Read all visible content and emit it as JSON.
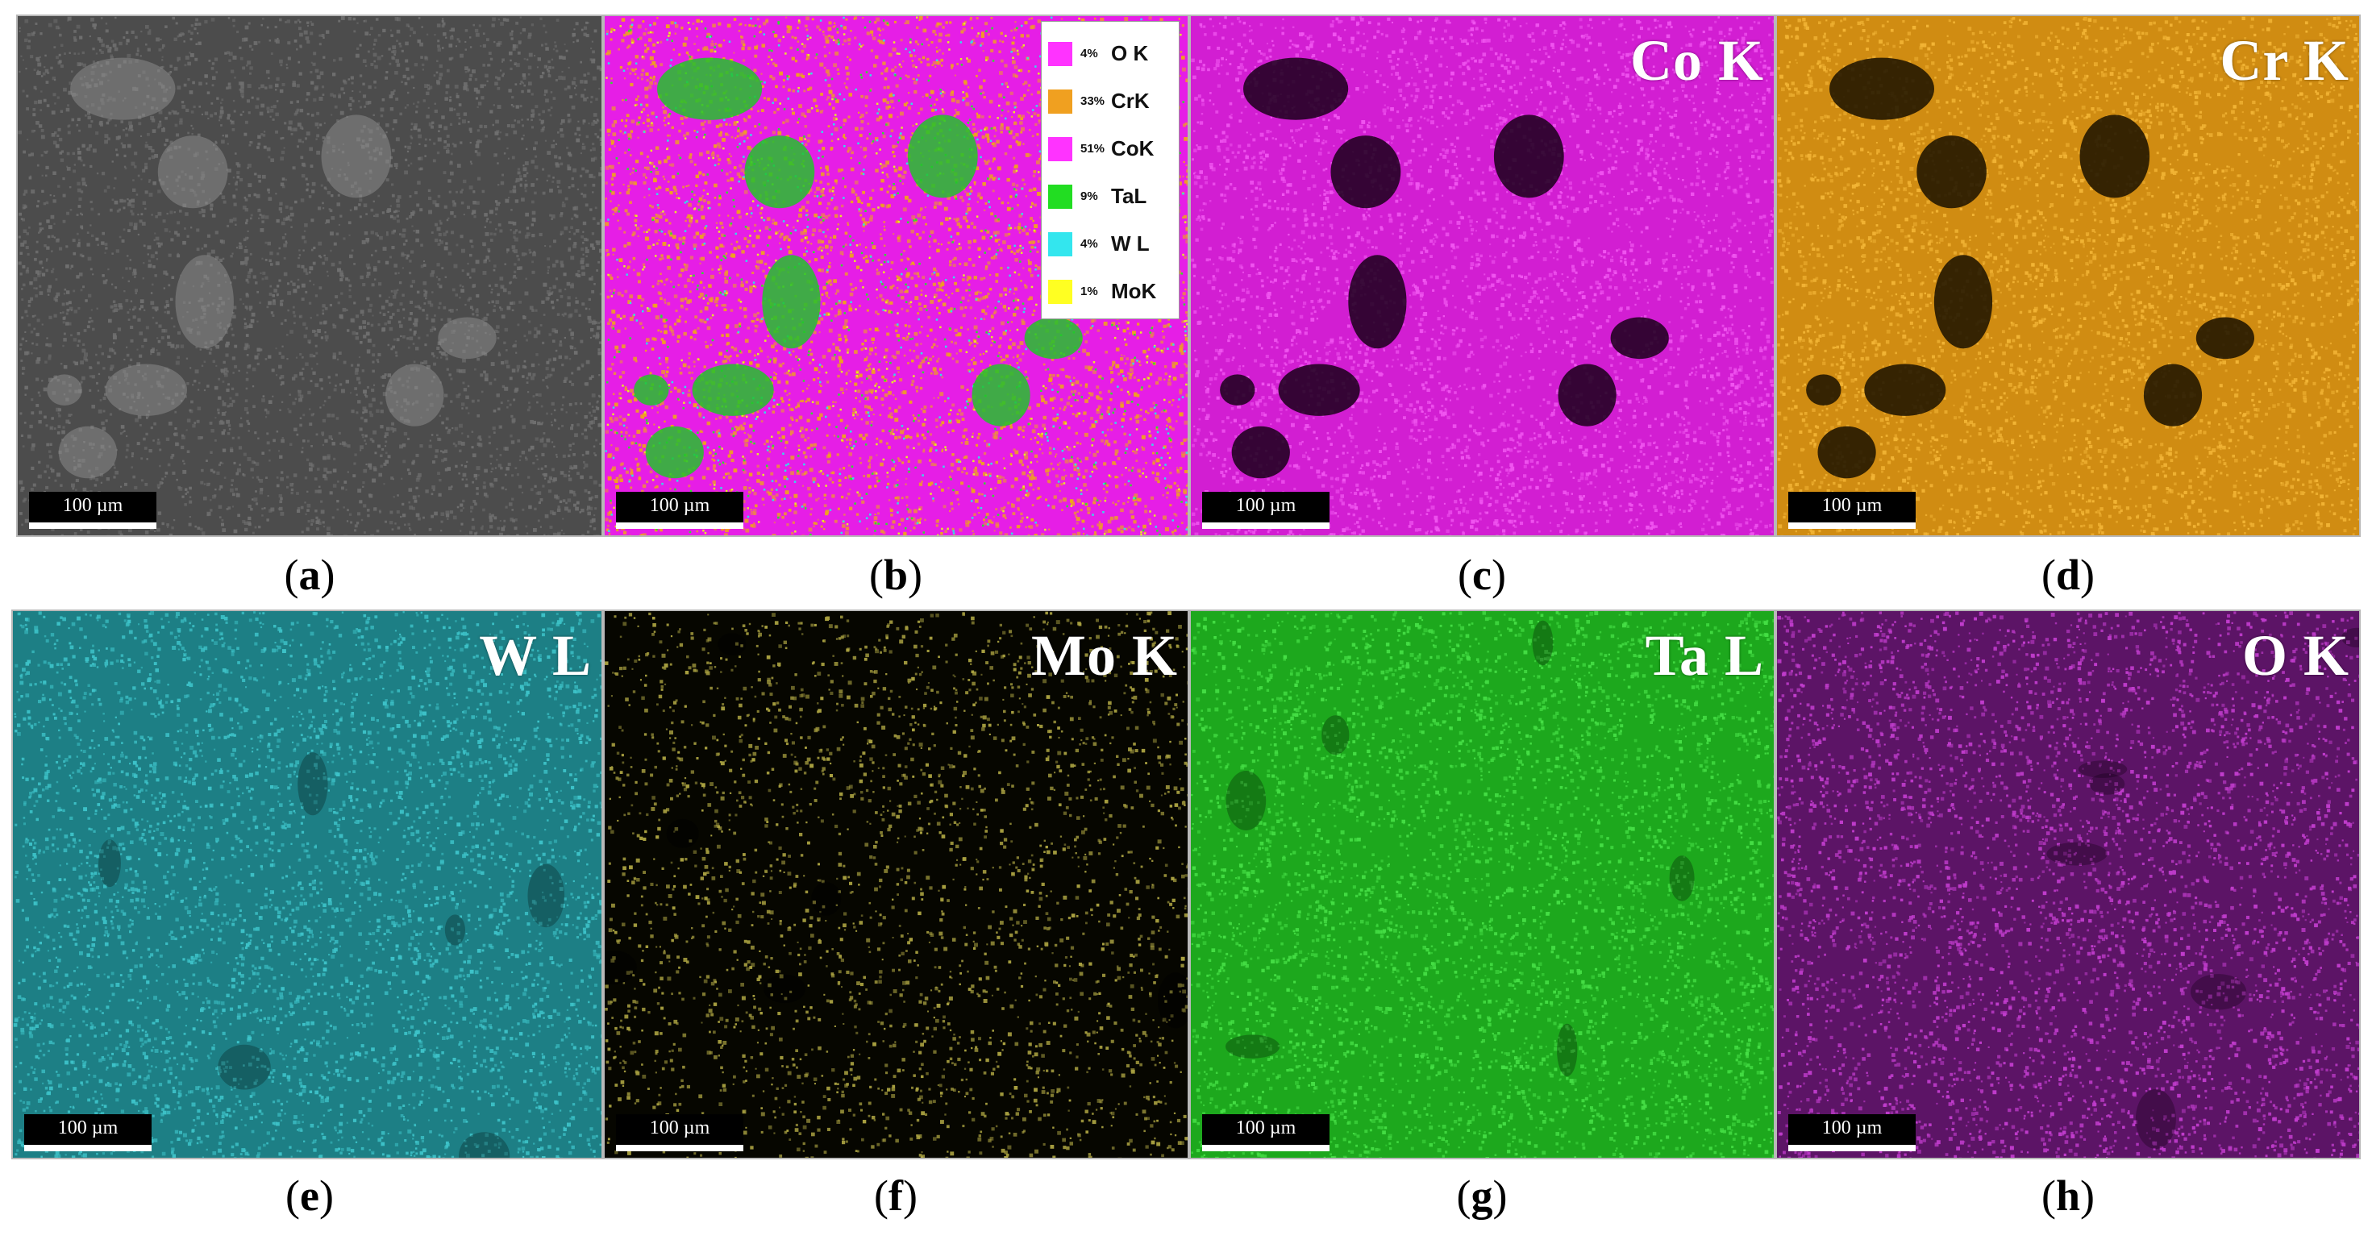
{
  "figure": {
    "scale_bar_label": "100 µm",
    "panels": [
      {
        "id": "a",
        "caption_letter": "a",
        "map_title": "",
        "bg": "#4c4c4c",
        "dots": "#6f6f6f",
        "dark": "#2c2c2c"
      },
      {
        "id": "b",
        "caption_letter": "b",
        "map_title": "",
        "bg": "#e61ee6",
        "dots": "#f0a020",
        "dark": "#22c32a"
      },
      {
        "id": "c",
        "caption_letter": "c",
        "map_title": "Co K",
        "bg": "#d21ed2",
        "dots": "#f055f0",
        "dark": "#1a001a"
      },
      {
        "id": "d",
        "caption_letter": "d",
        "map_title": "Cr K",
        "bg": "#d08c12",
        "dots": "#f2b435",
        "dark": "#1a1000"
      },
      {
        "id": "e",
        "caption_letter": "e",
        "map_title": "W L",
        "bg": "#1d7f85",
        "dots": "#3dc2c8",
        "dark": "#0a2426"
      },
      {
        "id": "f",
        "caption_letter": "f",
        "map_title": "Mo K",
        "bg": "#060600",
        "dots": "#a8a040",
        "dark": "#000000"
      },
      {
        "id": "g",
        "caption_letter": "g",
        "map_title": "Ta L",
        "bg": "#1da81d",
        "dots": "#45de45",
        "dark": "#052405"
      },
      {
        "id": "h",
        "caption_letter": "h",
        "map_title": "O K",
        "bg": "#5c1466",
        "dots": "#c03ccc",
        "dark": "#150018"
      }
    ],
    "legend": [
      {
        "pct": "4%",
        "element": "O K",
        "color": "#ff33ff"
      },
      {
        "pct": "33%",
        "element": "CrK",
        "color": "#f0a020"
      },
      {
        "pct": "51%",
        "element": "CoK",
        "color": "#ff33ff"
      },
      {
        "pct": "9%",
        "element": "TaL",
        "color": "#22dd22"
      },
      {
        "pct": "4%",
        "element": "W L",
        "color": "#33e6ee"
      },
      {
        "pct": "1%",
        "element": "MoK",
        "color": "#ffff22"
      }
    ]
  }
}
